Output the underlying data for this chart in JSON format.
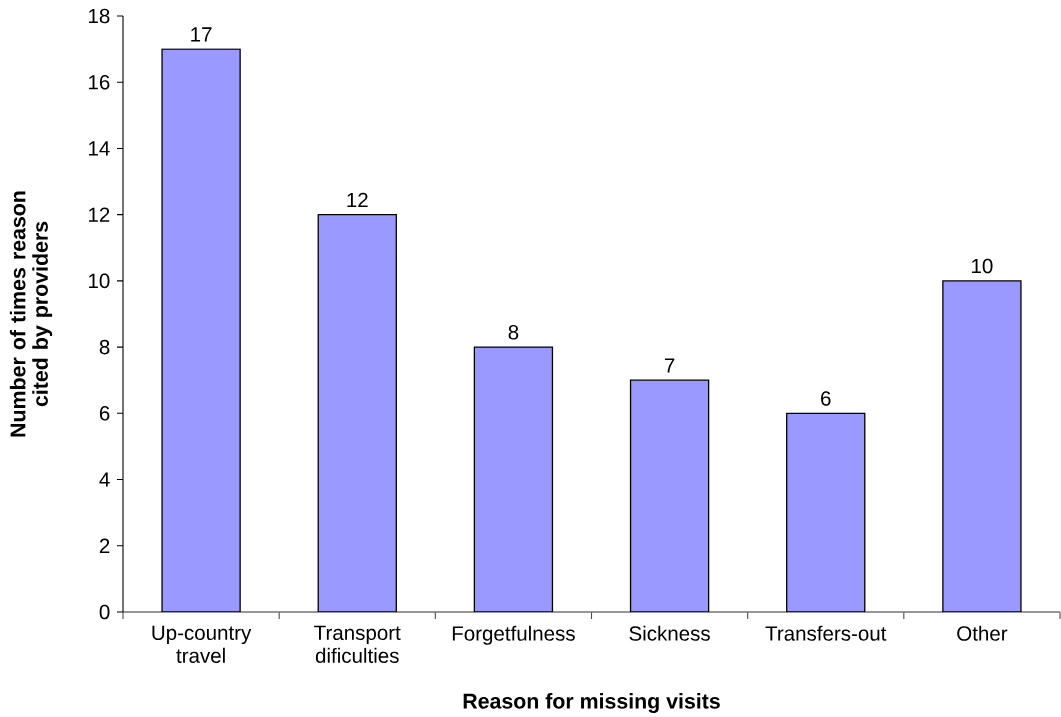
{
  "chart_data": {
    "type": "bar",
    "xlabel": "Reason for missing visits",
    "ylabel": "Number of times reason cited by providers",
    "categories": [
      "Up-country travel",
      "Transport dificulties",
      "Forgetfulness",
      "Sickness",
      "Transfers-out",
      "Other"
    ],
    "values": [
      17,
      12,
      8,
      7,
      6,
      10
    ],
    "color": "#9999ff",
    "ylim": [
      0,
      18
    ],
    "yticks": [
      0,
      2,
      4,
      6,
      8,
      10,
      12,
      14,
      16,
      18
    ],
    "data_labels": true
  }
}
